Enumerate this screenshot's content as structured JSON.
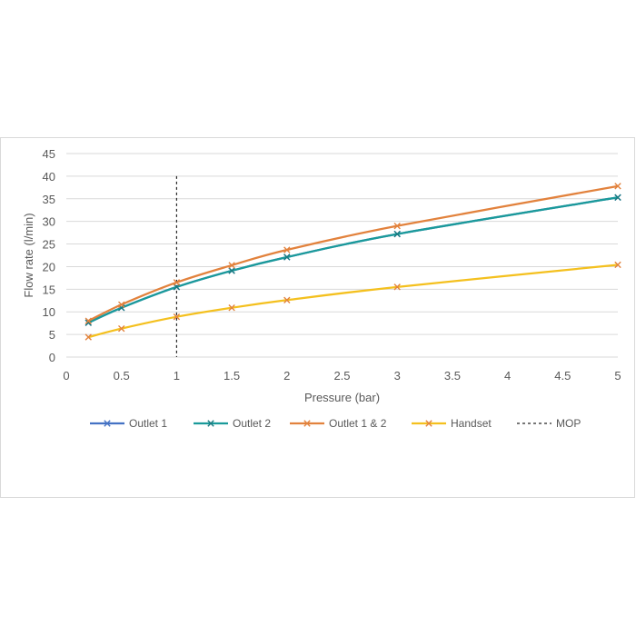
{
  "chart_data": {
    "type": "line",
    "title": "",
    "xlabel": "Pressure (bar)",
    "ylabel": "Flow rate (l/min)",
    "xlim": [
      0,
      5
    ],
    "ylim": [
      0,
      45
    ],
    "xticks": [
      "0",
      "0.5",
      "1",
      "1.5",
      "2",
      "2.5",
      "3",
      "3.5",
      "4",
      "4.5",
      "5"
    ],
    "yticks": [
      "0",
      "5",
      "10",
      "15",
      "20",
      "25",
      "30",
      "35",
      "40",
      "45"
    ],
    "grid": true,
    "legend_position": "bottom",
    "series": [
      {
        "name": "Outlet 1",
        "color": "#4472c4",
        "marker_color": "#4472c4",
        "x": [
          0.2,
          0.5,
          1,
          1.5,
          2,
          3,
          5
        ],
        "y": [
          7.6,
          10.9,
          15.5,
          19.1,
          22.1,
          27.2,
          35.3
        ]
      },
      {
        "name": "Outlet 2",
        "color": "#1a9a9a",
        "marker_color": "#1a7a80",
        "x": [
          0.2,
          0.5,
          1,
          1.5,
          2,
          3,
          5
        ],
        "y": [
          7.6,
          10.9,
          15.5,
          19.1,
          22.1,
          27.2,
          35.3
        ]
      },
      {
        "name": "Outlet 1 & 2",
        "color": "#e2823d",
        "marker_color": "#e2823d",
        "x": [
          0.2,
          0.5,
          1,
          1.5,
          2,
          3,
          5
        ],
        "y": [
          8.0,
          11.6,
          16.5,
          20.3,
          23.7,
          29.0,
          37.8
        ]
      },
      {
        "name": "Handset",
        "color": "#f4c01e",
        "marker_color": "#e2823d",
        "x": [
          0.2,
          0.5,
          1,
          1.5,
          2,
          3,
          5
        ],
        "y": [
          4.4,
          6.3,
          8.9,
          10.9,
          12.6,
          15.5,
          20.4
        ]
      }
    ],
    "reference_lines": [
      {
        "name": "MOP",
        "x": 1,
        "y_range": [
          0,
          40
        ],
        "color": "#262626",
        "style": "dashed"
      }
    ]
  }
}
